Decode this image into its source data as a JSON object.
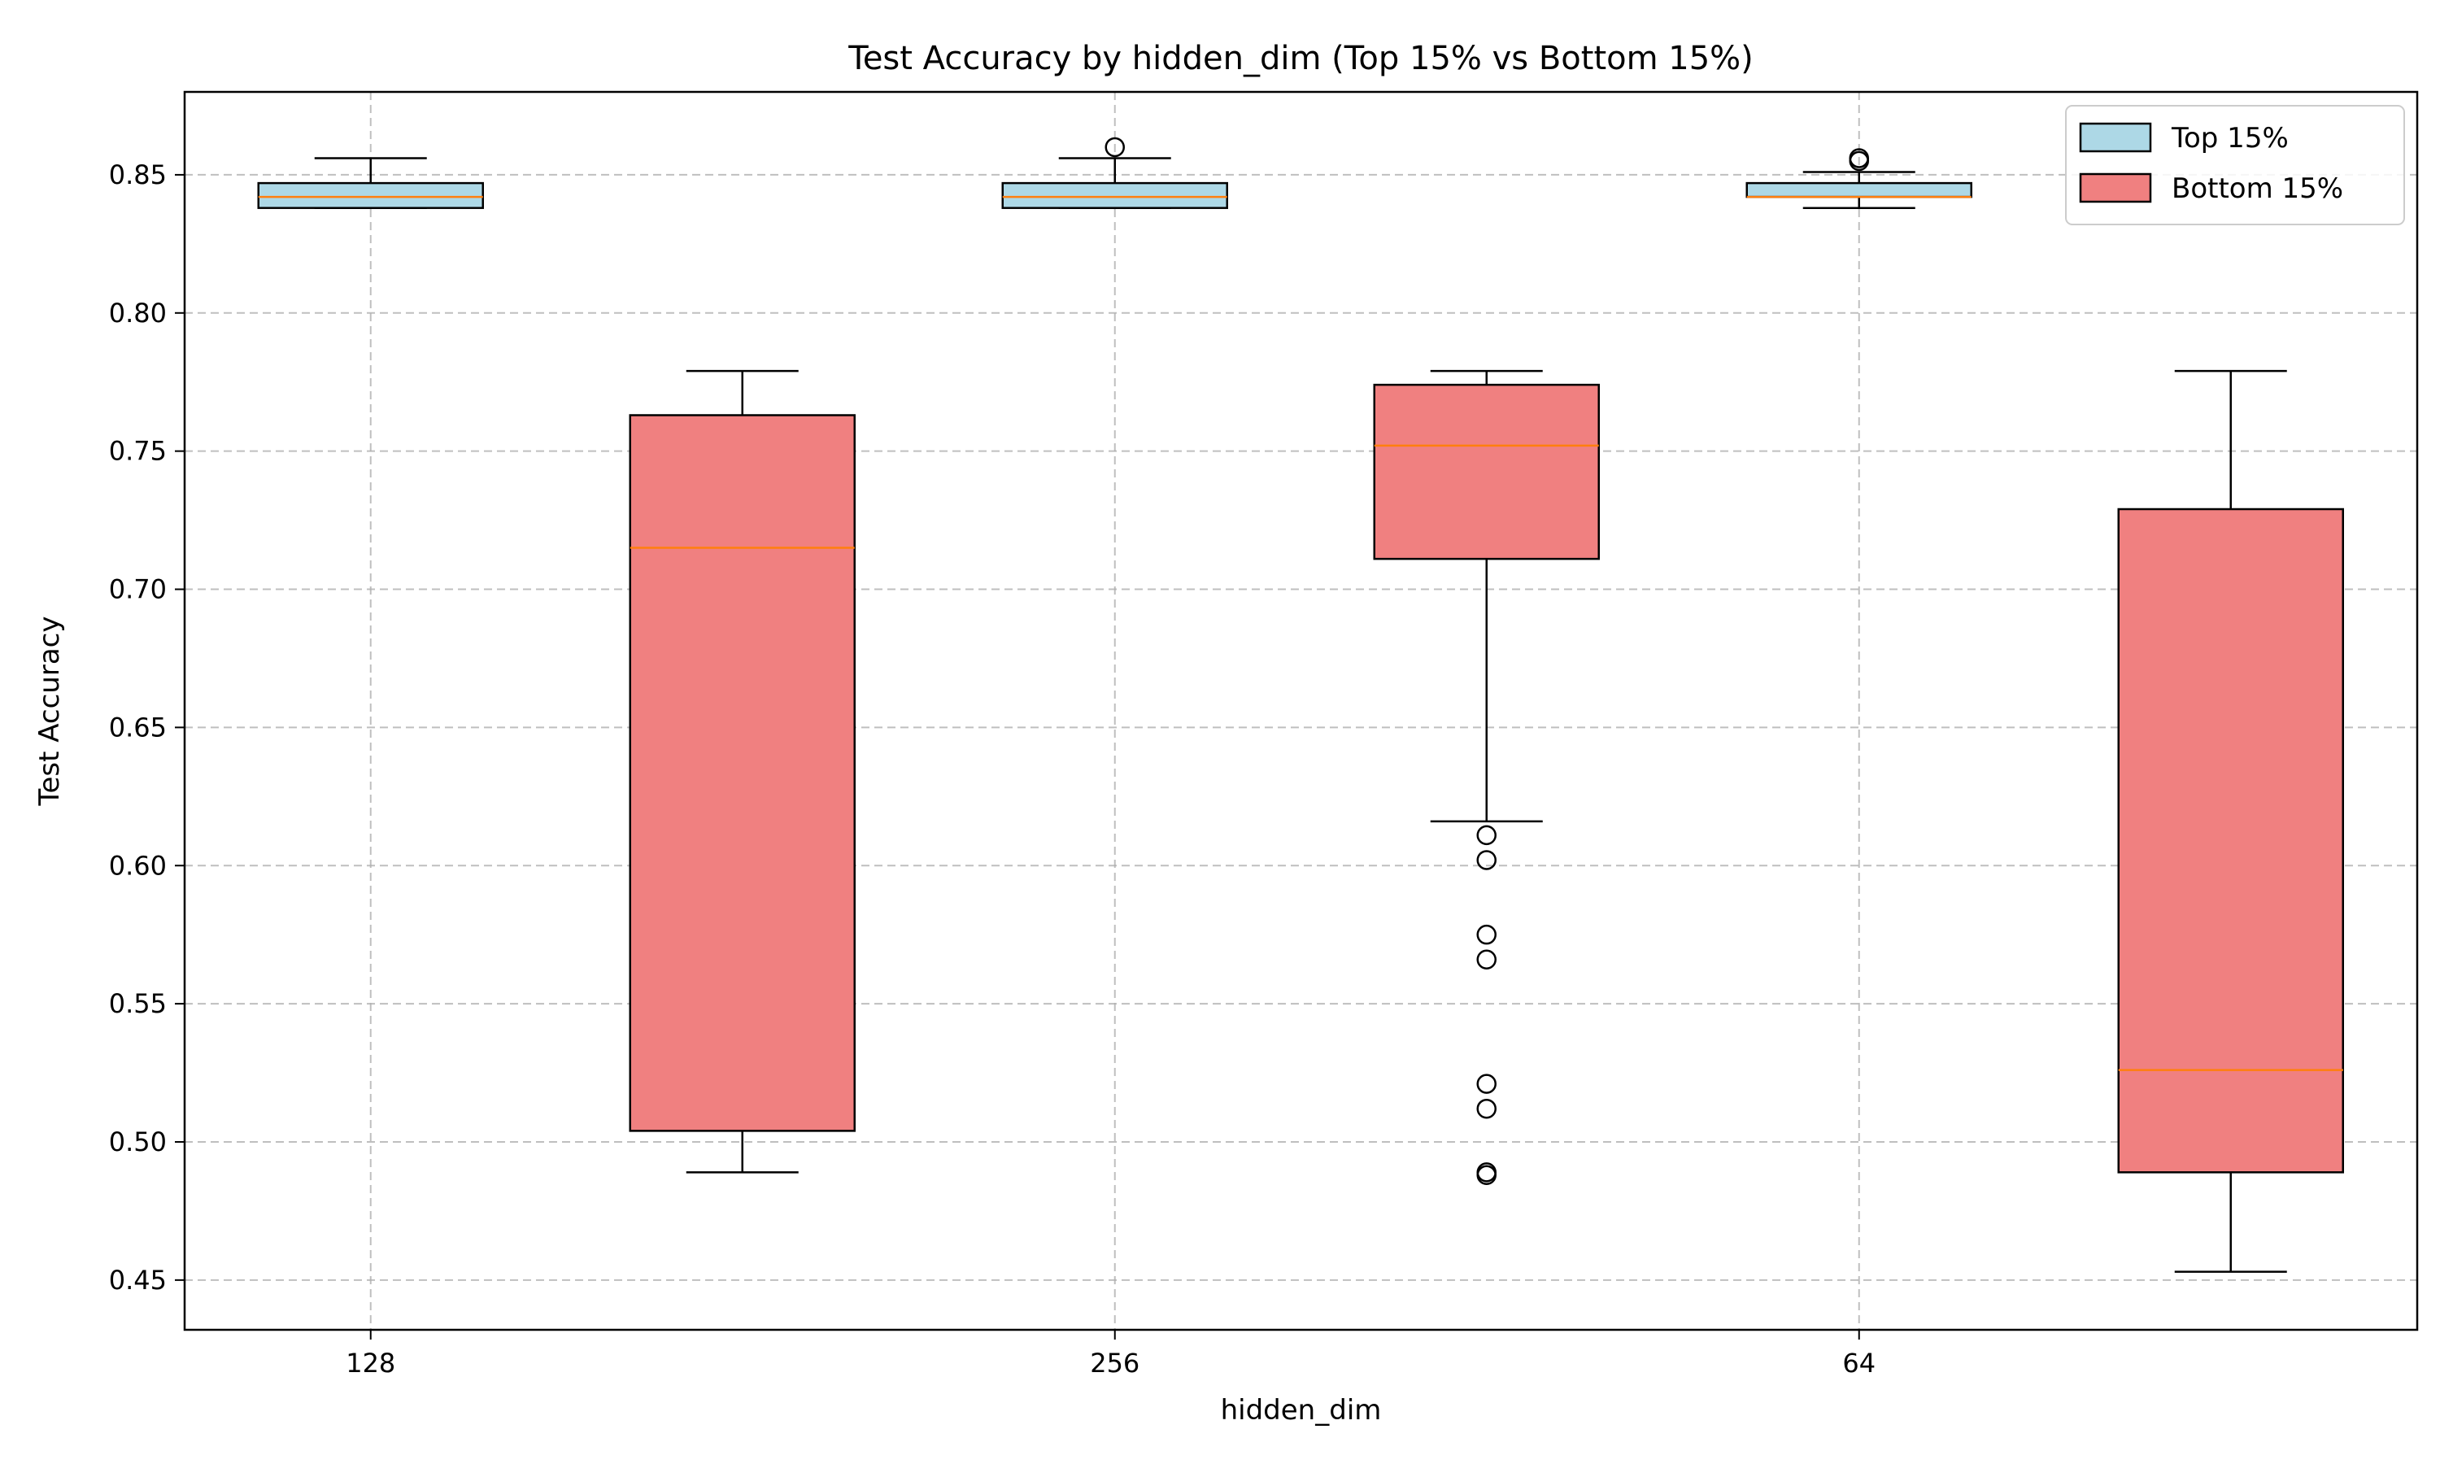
{
  "chart_data": {
    "type": "box",
    "title": "Test Accuracy by hidden_dim (Top 15% vs Bottom 15%)",
    "xlabel": "hidden_dim",
    "ylabel": "Test Accuracy",
    "categories": [
      "128",
      "256",
      "64"
    ],
    "ylim": [
      0.432,
      0.88
    ],
    "yticks": [
      0.45,
      0.5,
      0.55,
      0.6,
      0.65,
      0.7,
      0.75,
      0.8,
      0.85
    ],
    "ytick_labels": [
      "0.45",
      "0.50",
      "0.55",
      "0.60",
      "0.65",
      "0.70",
      "0.75",
      "0.80",
      "0.85"
    ],
    "grid": true,
    "legend_position": "top-right",
    "series": [
      {
        "name": "Top 15%",
        "color": "#add8e6",
        "boxes": [
          {
            "whisker_low": 0.838,
            "q1": 0.838,
            "median": 0.842,
            "q3": 0.847,
            "whisker_high": 0.856,
            "outliers": []
          },
          {
            "whisker_low": 0.838,
            "q1": 0.838,
            "median": 0.842,
            "q3": 0.847,
            "whisker_high": 0.856,
            "outliers": [
              0.86
            ]
          },
          {
            "whisker_low": 0.838,
            "q1": 0.842,
            "median": 0.842,
            "q3": 0.847,
            "whisker_high": 0.851,
            "outliers": [
              0.856,
              0.855
            ]
          }
        ]
      },
      {
        "name": "Bottom 15%",
        "color": "#f08080",
        "boxes": [
          {
            "whisker_low": 0.489,
            "q1": 0.504,
            "median": 0.715,
            "q3": 0.763,
            "whisker_high": 0.779,
            "outliers": []
          },
          {
            "whisker_low": 0.616,
            "q1": 0.711,
            "median": 0.752,
            "q3": 0.774,
            "whisker_high": 0.779,
            "outliers": [
              0.611,
              0.602,
              0.575,
              0.566,
              0.521,
              0.512,
              0.489,
              0.488
            ]
          },
          {
            "whisker_low": 0.453,
            "q1": 0.489,
            "median": 0.526,
            "q3": 0.729,
            "whisker_high": 0.779,
            "outliers": []
          }
        ]
      }
    ],
    "median_color": "#ff7f0e"
  }
}
